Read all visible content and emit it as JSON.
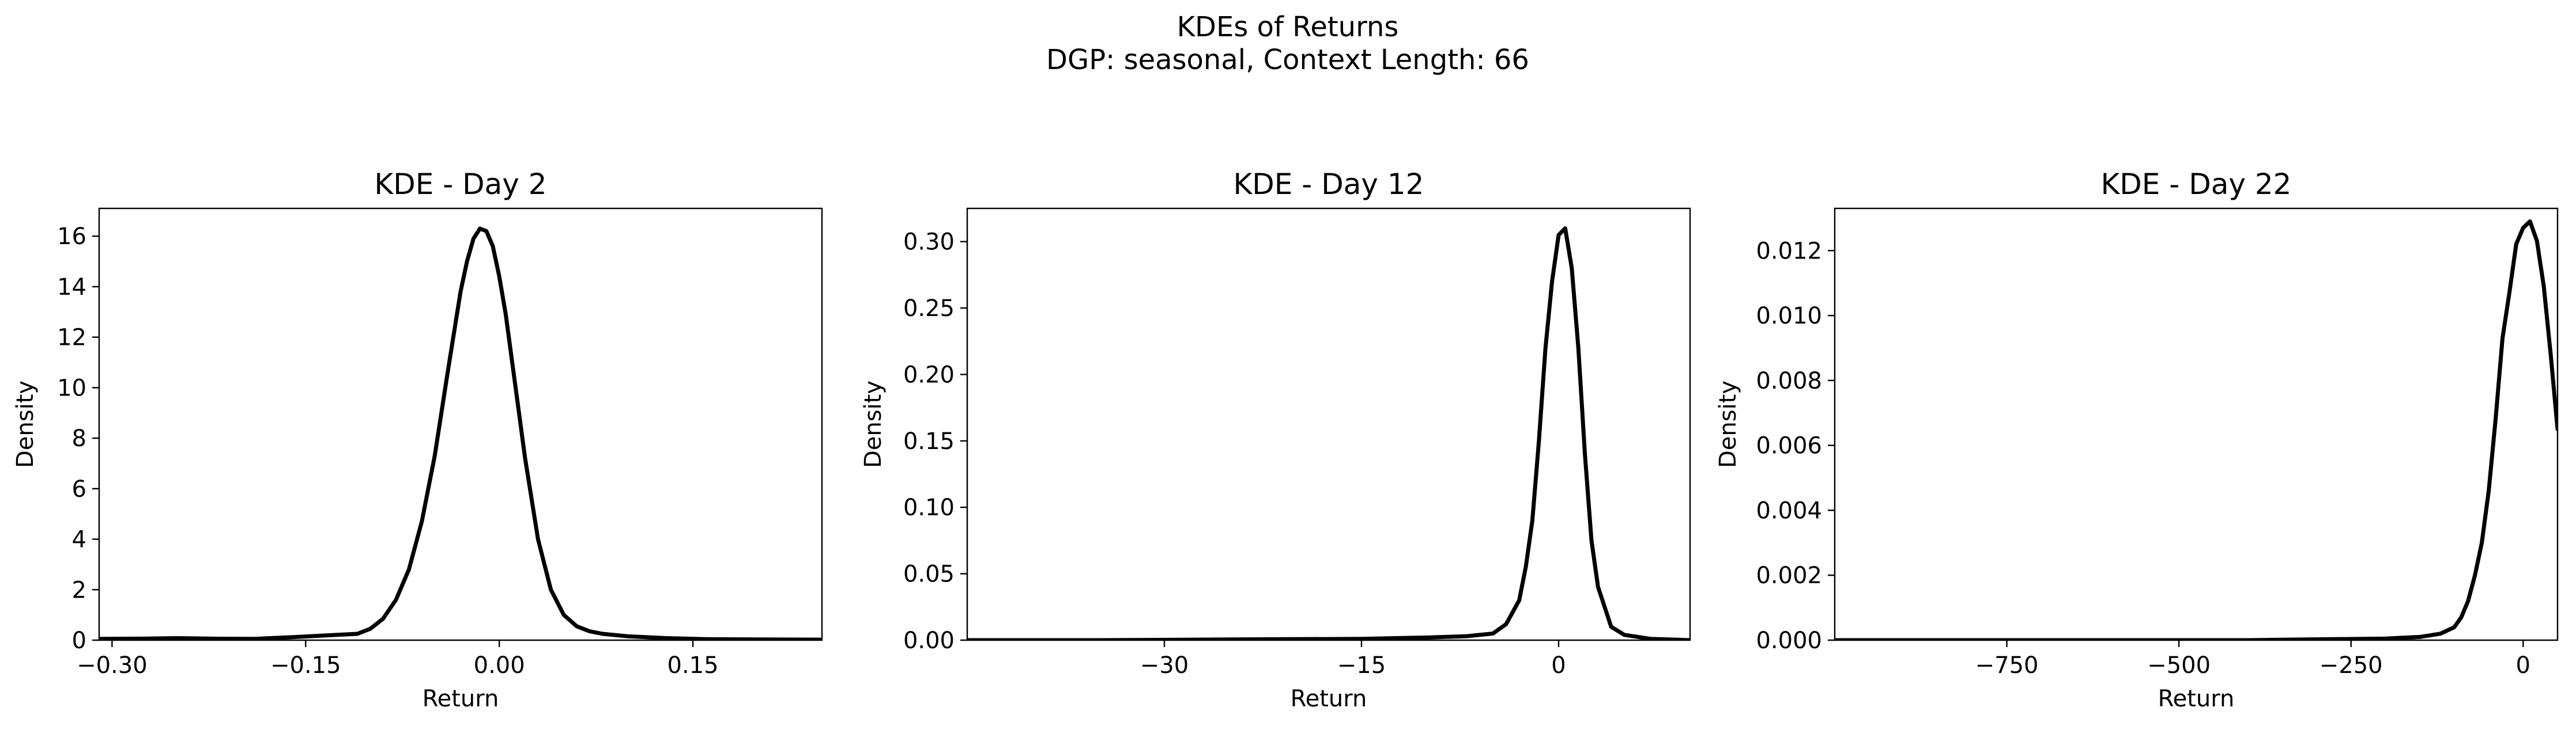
{
  "figure": {
    "suptitle_line1": "KDEs of Returns",
    "suptitle_line2": "DGP: seasonal, Context Length: 66"
  },
  "chart_data": [
    {
      "type": "line",
      "title": "KDE - Day 2",
      "xlabel": "Return",
      "ylabel": "Density",
      "xlim": [
        -0.31,
        0.25
      ],
      "ylim": [
        0,
        17.1
      ],
      "xticks": [
        -0.3,
        -0.15,
        0.0,
        0.15
      ],
      "xtick_labels": [
        "−0.30",
        "−0.15",
        "0.00",
        "0.15"
      ],
      "yticks": [
        0,
        2,
        4,
        6,
        8,
        10,
        12,
        14,
        16
      ],
      "ytick_labels": [
        "0",
        "2",
        "4",
        "6",
        "8",
        "10",
        "12",
        "14",
        "16"
      ],
      "grid": false,
      "series": [
        {
          "color": "#000000",
          "x": [
            -0.31,
            -0.28,
            -0.25,
            -0.22,
            -0.19,
            -0.16,
            -0.13,
            -0.11,
            -0.1,
            -0.09,
            -0.08,
            -0.07,
            -0.06,
            -0.05,
            -0.04,
            -0.03,
            -0.025,
            -0.02,
            -0.015,
            -0.01,
            -0.005,
            0.0,
            0.005,
            0.01,
            0.02,
            0.03,
            0.04,
            0.05,
            0.06,
            0.07,
            0.08,
            0.1,
            0.13,
            0.16,
            0.2,
            0.25
          ],
          "y": [
            0.05,
            0.06,
            0.08,
            0.06,
            0.05,
            0.12,
            0.2,
            0.25,
            0.45,
            0.85,
            1.6,
            2.8,
            4.7,
            7.3,
            10.6,
            13.8,
            15.0,
            15.9,
            16.3,
            16.2,
            15.6,
            14.4,
            12.9,
            11.0,
            7.2,
            4.0,
            2.0,
            1.0,
            0.55,
            0.35,
            0.25,
            0.15,
            0.08,
            0.04,
            0.03,
            0.02
          ]
        }
      ]
    },
    {
      "type": "line",
      "title": "KDE - Day 12",
      "xlabel": "Return",
      "ylabel": "Density",
      "xlim": [
        -45,
        10
      ],
      "ylim": [
        0,
        0.325
      ],
      "xticks": [
        -30,
        -15,
        0
      ],
      "xtick_labels": [
        "−30",
        "−15",
        "0"
      ],
      "yticks": [
        0.0,
        0.05,
        0.1,
        0.15,
        0.2,
        0.25,
        0.3
      ],
      "ytick_labels": [
        "0.00",
        "0.05",
        "0.10",
        "0.15",
        "0.20",
        "0.25",
        "0.30"
      ],
      "grid": false,
      "series": [
        {
          "color": "#000000",
          "x": [
            -45,
            -35,
            -25,
            -15,
            -10,
            -7,
            -5,
            -4,
            -3,
            -2.5,
            -2,
            -1.5,
            -1,
            -0.5,
            0,
            0.5,
            1,
            1.5,
            2,
            2.5,
            3,
            4,
            5,
            7,
            10
          ],
          "y": [
            0.0,
            0.0,
            0.0005,
            0.001,
            0.002,
            0.003,
            0.005,
            0.012,
            0.03,
            0.055,
            0.09,
            0.15,
            0.22,
            0.27,
            0.305,
            0.31,
            0.28,
            0.22,
            0.14,
            0.075,
            0.04,
            0.01,
            0.004,
            0.001,
            0.0
          ]
        }
      ]
    },
    {
      "type": "line",
      "title": "KDE - Day 22",
      "xlabel": "Return",
      "ylabel": "Density",
      "xlim": [
        -1000,
        50
      ],
      "ylim": [
        0,
        0.0133
      ],
      "xticks": [
        -750,
        -500,
        -250,
        0
      ],
      "xtick_labels": [
        "−750",
        "−500",
        "−250",
        "0"
      ],
      "yticks": [
        0.0,
        0.002,
        0.004,
        0.006,
        0.008,
        0.01,
        0.012
      ],
      "ytick_labels": [
        "0.000",
        "0.002",
        "0.004",
        "0.006",
        "0.008",
        "0.010",
        "0.012"
      ],
      "grid": false,
      "series": [
        {
          "color": "#000000",
          "x": [
            -1000,
            -800,
            -600,
            -400,
            -200,
            -150,
            -120,
            -100,
            -90,
            -80,
            -70,
            -60,
            -50,
            -40,
            -30,
            -20,
            -10,
            0,
            10,
            20,
            30,
            40,
            50
          ],
          "y": [
            0.0,
            0.0,
            0.0,
            0.0,
            5e-05,
            0.0001,
            0.0002,
            0.0004,
            0.0007,
            0.0012,
            0.002,
            0.003,
            0.0046,
            0.0068,
            0.0093,
            0.0107,
            0.0122,
            0.0127,
            0.0129,
            0.0123,
            0.0109,
            0.0088,
            0.0065
          ]
        }
      ]
    }
  ]
}
